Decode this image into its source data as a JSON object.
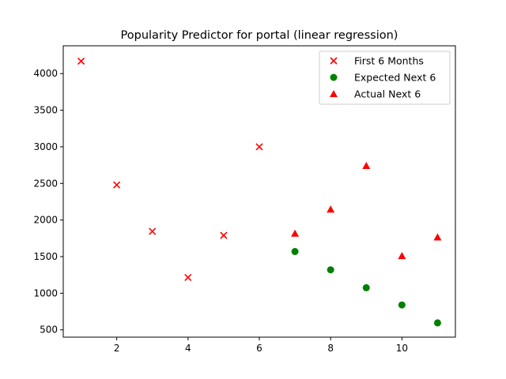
{
  "chart_data": {
    "type": "scatter",
    "title": "Popularity Predictor for portal (linear regression)",
    "xlabel": "",
    "ylabel": "",
    "xlim": [
      0.5,
      11.5
    ],
    "ylim": [
      400,
      4380
    ],
    "x_ticks": [
      2,
      4,
      6,
      8,
      10
    ],
    "y_ticks": [
      500,
      1000,
      1500,
      2000,
      2500,
      3000,
      3500,
      4000
    ],
    "grid": false,
    "legend_position": "top-right",
    "series": [
      {
        "name": "First 6 Months",
        "marker": "x",
        "color": "#ff0000",
        "x": [
          1,
          2,
          3,
          4,
          5,
          6
        ],
        "y": [
          4170,
          2480,
          1845,
          1215,
          1790,
          3000
        ]
      },
      {
        "name": "Expected Next 6",
        "marker": "circle",
        "color": "#008000",
        "x": [
          7,
          8,
          9,
          10,
          11
        ],
        "y": [
          1570,
          1320,
          1075,
          840,
          595
        ]
      },
      {
        "name": "Actual Next 6",
        "marker": "triangle",
        "color": "#ff0000",
        "x": [
          7,
          8,
          9,
          10,
          11
        ],
        "y": [
          1815,
          2145,
          2740,
          1510,
          1765
        ]
      }
    ]
  }
}
